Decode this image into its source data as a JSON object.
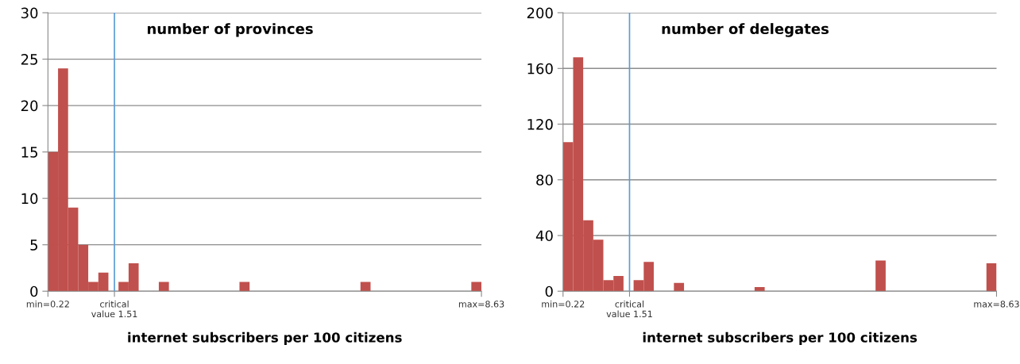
{
  "chart_data": [
    {
      "type": "histogram",
      "title": "number of provinces",
      "xlabel": "internet subscribers per 100 citizens",
      "bins": [
        0.22,
        0.416,
        0.611,
        0.807,
        1.002,
        1.198,
        1.393,
        1.589,
        1.785,
        1.98,
        2.176,
        2.371,
        2.567,
        2.763,
        2.958,
        3.154,
        3.349,
        3.545,
        3.74,
        3.936,
        4.132,
        4.327,
        4.523,
        4.718,
        4.914,
        5.11,
        5.305,
        5.501,
        5.696,
        5.892,
        6.087,
        6.283,
        6.479,
        6.674,
        6.87,
        7.065,
        7.261,
        7.457,
        7.652,
        7.848,
        8.043,
        8.239,
        8.434,
        8.63
      ],
      "values": [
        15,
        24,
        9,
        5,
        1,
        2,
        0,
        1,
        3,
        0,
        0,
        1,
        0,
        0,
        0,
        0,
        0,
        0,
        0,
        1,
        0,
        0,
        0,
        0,
        0,
        0,
        0,
        0,
        0,
        0,
        0,
        1,
        0,
        0,
        0,
        0,
        0,
        0,
        0,
        0,
        0,
        0,
        1
      ],
      "color": "#c0504d",
      "xlim": [
        0.22,
        8.63
      ],
      "xticks": [
        {
          "value": 0.22,
          "label": "min=0.22"
        },
        {
          "value": 1.51,
          "label": "critical\nvalue 1.51"
        },
        {
          "value": 8.63,
          "label": "max=8.63"
        }
      ],
      "ylim": [
        0,
        30
      ],
      "yticks": [
        0,
        5,
        10,
        15,
        20,
        25,
        30
      ],
      "grid": "y",
      "ref_lines": [
        {
          "axis": "x",
          "value": 1.51,
          "color": "#5b9bd5"
        }
      ]
    },
    {
      "type": "histogram",
      "title": "number of delegates",
      "xlabel": "internet subscribers per 100 citizens",
      "bins": [
        0.22,
        0.416,
        0.611,
        0.807,
        1.002,
        1.198,
        1.393,
        1.589,
        1.785,
        1.98,
        2.176,
        2.371,
        2.567,
        2.763,
        2.958,
        3.154,
        3.349,
        3.545,
        3.74,
        3.936,
        4.132,
        4.327,
        4.523,
        4.718,
        4.914,
        5.11,
        5.305,
        5.501,
        5.696,
        5.892,
        6.087,
        6.283,
        6.479,
        6.674,
        6.87,
        7.065,
        7.261,
        7.457,
        7.652,
        7.848,
        8.043,
        8.239,
        8.434,
        8.63
      ],
      "values": [
        107,
        168,
        51,
        37,
        8,
        11,
        0,
        8,
        21,
        0,
        0,
        6,
        0,
        0,
        0,
        0,
        0,
        0,
        0,
        3,
        0,
        0,
        0,
        0,
        0,
        0,
        0,
        0,
        0,
        0,
        0,
        22,
        0,
        0,
        0,
        0,
        0,
        0,
        0,
        0,
        0,
        0,
        20
      ],
      "color": "#c0504d",
      "xlim": [
        0.22,
        8.63
      ],
      "xticks": [
        {
          "value": 0.22,
          "label": "min=0.22"
        },
        {
          "value": 1.51,
          "label": "critical\nvalue 1.51"
        },
        {
          "value": 8.63,
          "label": "max=8.63"
        }
      ],
      "ylim": [
        0,
        200
      ],
      "yticks": [
        0,
        40,
        80,
        120,
        160,
        200
      ],
      "grid": "y",
      "ref_lines": [
        {
          "axis": "x",
          "value": 1.51,
          "color": "#5b9bd5"
        }
      ]
    }
  ]
}
